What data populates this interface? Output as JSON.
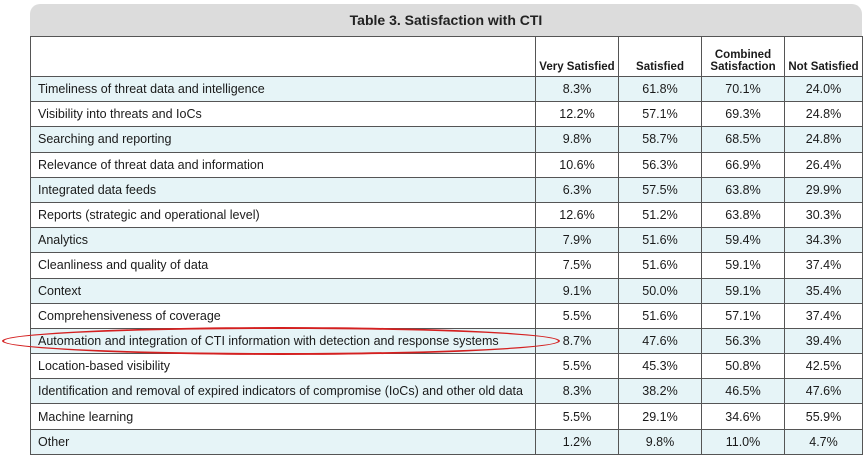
{
  "table": {
    "title": "Table 3. Satisfaction with CTI",
    "columns": [
      "",
      "Very Satisfied",
      "Satisfied",
      "Combined Satisfaction",
      "Not Satisfied"
    ],
    "rows": [
      {
        "label": "Timeliness of threat data and intelligence",
        "values": [
          "8.3%",
          "61.8%",
          "70.1%",
          "24.0%"
        ]
      },
      {
        "label": "Visibility into threats and IoCs",
        "values": [
          "12.2%",
          "57.1%",
          "69.3%",
          "24.8%"
        ]
      },
      {
        "label": "Searching and reporting",
        "values": [
          "9.8%",
          "58.7%",
          "68.5%",
          "24.8%"
        ]
      },
      {
        "label": "Relevance of threat data and information",
        "values": [
          "10.6%",
          "56.3%",
          "66.9%",
          "26.4%"
        ]
      },
      {
        "label": "Integrated data feeds",
        "values": [
          "6.3%",
          "57.5%",
          "63.8%",
          "29.9%"
        ]
      },
      {
        "label": "Reports (strategic and operational level)",
        "values": [
          "12.6%",
          "51.2%",
          "63.8%",
          "30.3%"
        ]
      },
      {
        "label": "Analytics",
        "values": [
          "7.9%",
          "51.6%",
          "59.4%",
          "34.3%"
        ]
      },
      {
        "label": "Cleanliness and quality of data",
        "values": [
          "7.5%",
          "51.6%",
          "59.1%",
          "37.4%"
        ]
      },
      {
        "label": "Context",
        "values": [
          "9.1%",
          "50.0%",
          "59.1%",
          "35.4%"
        ]
      },
      {
        "label": "Comprehensiveness of coverage",
        "values": [
          "5.5%",
          "51.6%",
          "57.1%",
          "37.4%"
        ]
      },
      {
        "label": "Automation and integration of CTI information with detection and response systems",
        "values": [
          "8.7%",
          "47.6%",
          "56.3%",
          "39.4%"
        ]
      },
      {
        "label": "Location-based visibility",
        "values": [
          "5.5%",
          "45.3%",
          "50.8%",
          "42.5%"
        ]
      },
      {
        "label": "Identification and removal of expired indicators of compromise (IoCs) and other old data",
        "values": [
          "8.3%",
          "38.2%",
          "46.5%",
          "47.6%"
        ]
      },
      {
        "label": "Machine learning",
        "values": [
          "5.5%",
          "29.1%",
          "34.6%",
          "55.9%"
        ]
      },
      {
        "label": "Other",
        "values": [
          "1.2%",
          "9.8%",
          "11.0%",
          "4.7%"
        ]
      }
    ]
  },
  "colors": {
    "title_bar": "#dcdcdc",
    "row_alt": "#e6f4f7",
    "highlight": "#d42020"
  }
}
